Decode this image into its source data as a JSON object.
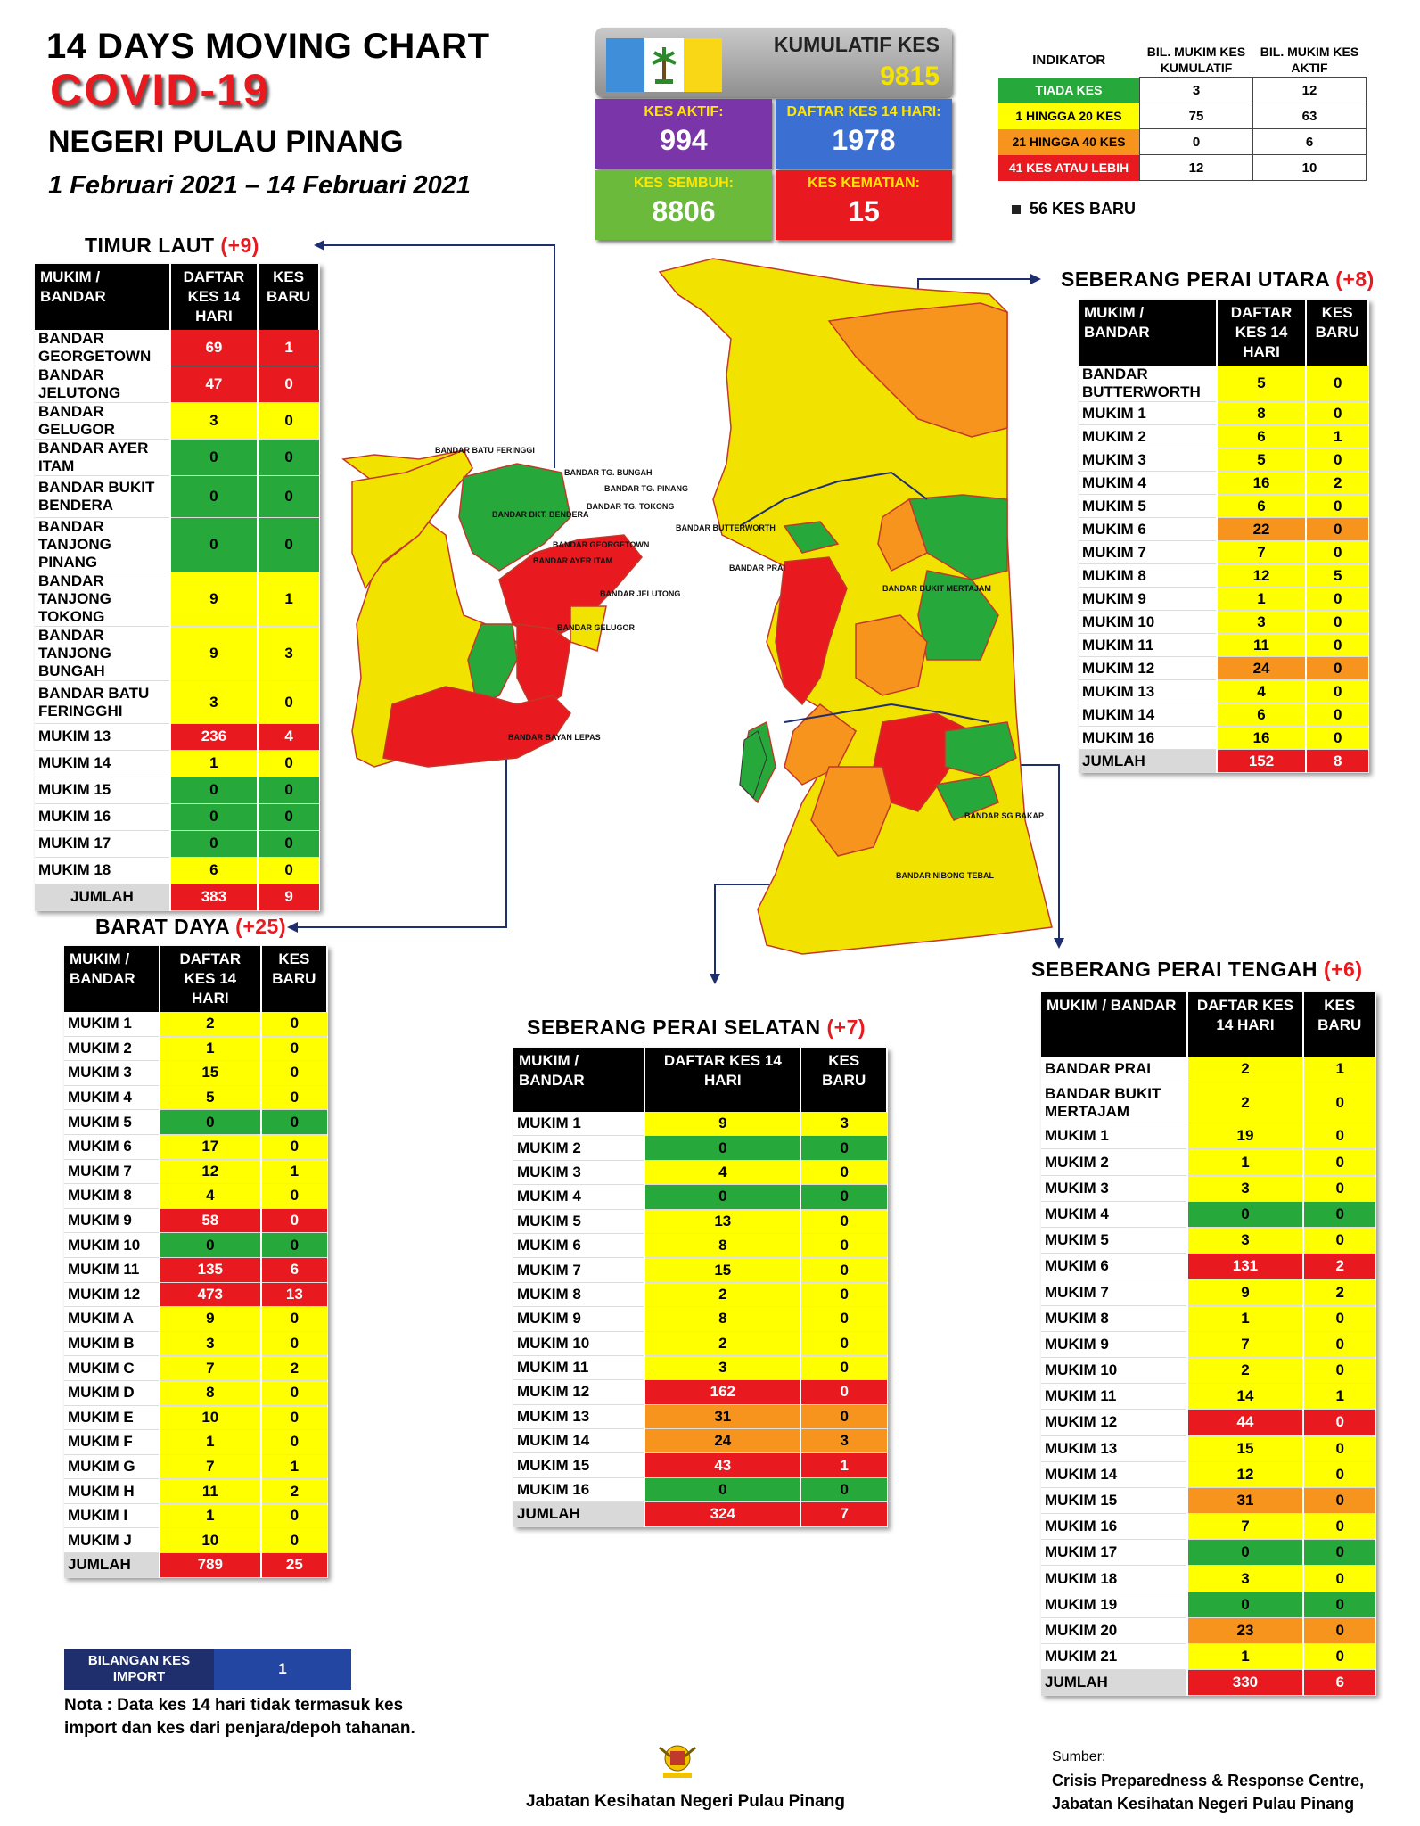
{
  "header": {
    "line1": "14  DAYS MOVING CHART",
    "line2": "COVID-19",
    "state": "NEGERI PULAU PINANG",
    "dates": "1 Februari 2021 – 14 Februari 2021"
  },
  "stats": {
    "cumulative_label": "KUMULATIF KES",
    "cumulative_value": "9815",
    "active_label": "KES AKTIF:",
    "active_value": "994",
    "list14_label": "DAFTAR KES 14 HARI:",
    "list14_value": "1978",
    "recovered_label": "KES SEMBUH:",
    "recovered_value": "8806",
    "deaths_label": "KES KEMATIAN:",
    "deaths_value": "15"
  },
  "indicator": {
    "head_indicator": "INDIKATOR",
    "head_cumulative": "BIL. MUKIM KES KUMULATIF",
    "head_active": "BIL. MUKIM KES AKTIF",
    "rows": [
      {
        "label": "TIADA KES",
        "color": "#27a83a",
        "cumulative": "3",
        "active": "12"
      },
      {
        "label": "1 HINGGA 20 KES",
        "color": "#ffff00",
        "cumulative": "75",
        "active": "63"
      },
      {
        "label": "21 HINGGA 40 KES",
        "color": "#f7941d",
        "cumulative": "0",
        "active": "6"
      },
      {
        "label": "41 KES ATAU LEBIH",
        "color": "#e8191f",
        "cumulative": "12",
        "active": "10"
      }
    ],
    "new_cases": "56 KES BARU"
  },
  "colors": {
    "green": "#27a83a",
    "yellow": "#ffff00",
    "orange": "#f7941d",
    "red": "#e8191f"
  },
  "districts": {
    "timur_laut": {
      "name": "TIMUR LAUT",
      "increase": "(+9)",
      "head": [
        "MUKIM / BANDAR",
        "DAFTAR KES 14 HARI",
        "KES BARU"
      ],
      "rows": [
        [
          "BANDAR GEORGETOWN",
          "69",
          "1",
          "r",
          "r"
        ],
        [
          "BANDAR JELUTONG",
          "47",
          "0",
          "r",
          "r"
        ],
        [
          "BANDAR GELUGOR",
          "3",
          "0",
          "y",
          "y"
        ],
        [
          "BANDAR AYER ITAM",
          "0",
          "0",
          "g",
          "g"
        ],
        [
          "BANDAR BUKIT BENDERA",
          "0",
          "0",
          "g",
          "g"
        ],
        [
          "BANDAR TANJONG PINANG",
          "0",
          "0",
          "g",
          "g"
        ],
        [
          "BANDAR TANJONG TOKONG",
          "9",
          "1",
          "y",
          "y"
        ],
        [
          "BANDAR TANJONG BUNGAH",
          "9",
          "3",
          "y",
          "y"
        ],
        [
          "BANDAR BATU FERINGGHI",
          "3",
          "0",
          "y",
          "y"
        ],
        [
          "MUKIM 13",
          "236",
          "4",
          "r",
          "r"
        ],
        [
          "MUKIM 14",
          "1",
          "0",
          "y",
          "y"
        ],
        [
          "MUKIM 15",
          "0",
          "0",
          "g",
          "g"
        ],
        [
          "MUKIM 16",
          "0",
          "0",
          "g",
          "g"
        ],
        [
          "MUKIM 17",
          "0",
          "0",
          "g",
          "g"
        ],
        [
          "MUKIM 18",
          "6",
          "0",
          "y",
          "y"
        ]
      ],
      "total": [
        "JUMLAH",
        "383",
        "9"
      ]
    },
    "barat_daya": {
      "name": "BARAT DAYA",
      "increase": "(+25)",
      "head": [
        "MUKIM / BANDAR",
        "DAFTAR KES 14 HARI",
        "KES BARU"
      ],
      "rows": [
        [
          "MUKIM 1",
          "2",
          "0",
          "y",
          "y"
        ],
        [
          "MUKIM 2",
          "1",
          "0",
          "y",
          "y"
        ],
        [
          "MUKIM 3",
          "15",
          "0",
          "y",
          "y"
        ],
        [
          "MUKIM 4",
          "5",
          "0",
          "y",
          "y"
        ],
        [
          "MUKIM 5",
          "0",
          "0",
          "g",
          "g"
        ],
        [
          "MUKIM 6",
          "17",
          "0",
          "y",
          "y"
        ],
        [
          "MUKIM 7",
          "12",
          "1",
          "y",
          "y"
        ],
        [
          "MUKIM 8",
          "4",
          "0",
          "y",
          "y"
        ],
        [
          "MUKIM 9",
          "58",
          "0",
          "r",
          "r"
        ],
        [
          "MUKIM 10",
          "0",
          "0",
          "g",
          "g"
        ],
        [
          "MUKIM 11",
          "135",
          "6",
          "r",
          "r"
        ],
        [
          "MUKIM 12",
          "473",
          "13",
          "r",
          "r"
        ],
        [
          "MUKIM A",
          "9",
          "0",
          "y",
          "y"
        ],
        [
          "MUKIM B",
          "3",
          "0",
          "y",
          "y"
        ],
        [
          "MUKIM C",
          "7",
          "2",
          "y",
          "y"
        ],
        [
          "MUKIM D",
          "8",
          "0",
          "y",
          "y"
        ],
        [
          "MUKIM E",
          "10",
          "0",
          "y",
          "y"
        ],
        [
          "MUKIM F",
          "1",
          "0",
          "y",
          "y"
        ],
        [
          "MUKIM G",
          "7",
          "1",
          "y",
          "y"
        ],
        [
          "MUKIM H",
          "11",
          "2",
          "y",
          "y"
        ],
        [
          "MUKIM I",
          "1",
          "0",
          "y",
          "y"
        ],
        [
          "MUKIM J",
          "10",
          "0",
          "y",
          "y"
        ]
      ],
      "total": [
        "JUMLAH",
        "789",
        "25"
      ]
    },
    "spu": {
      "name": "SEBERANG PERAI UTARA",
      "increase": "(+8)",
      "head": [
        "MUKIM / BANDAR",
        "DAFTAR KES 14 HARI",
        "KES BARU"
      ],
      "rows": [
        [
          "BANDAR BUTTERWORTH",
          "5",
          "0",
          "y",
          "y"
        ],
        [
          "MUKIM 1",
          "8",
          "0",
          "y",
          "y"
        ],
        [
          "MUKIM 2",
          "6",
          "1",
          "y",
          "y"
        ],
        [
          "MUKIM 3",
          "5",
          "0",
          "y",
          "y"
        ],
        [
          "MUKIM 4",
          "16",
          "2",
          "y",
          "y"
        ],
        [
          "MUKIM 5",
          "6",
          "0",
          "y",
          "y"
        ],
        [
          "MUKIM 6",
          "22",
          "0",
          "o",
          "o"
        ],
        [
          "MUKIM 7",
          "7",
          "0",
          "y",
          "y"
        ],
        [
          "MUKIM 8",
          "12",
          "5",
          "y",
          "y"
        ],
        [
          "MUKIM 9",
          "1",
          "0",
          "y",
          "y"
        ],
        [
          "MUKIM 10",
          "3",
          "0",
          "y",
          "y"
        ],
        [
          "MUKIM 11",
          "11",
          "0",
          "y",
          "y"
        ],
        [
          "MUKIM 12",
          "24",
          "0",
          "o",
          "o"
        ],
        [
          "MUKIM 13",
          "4",
          "0",
          "y",
          "y"
        ],
        [
          "MUKIM 14",
          "6",
          "0",
          "y",
          "y"
        ],
        [
          "MUKIM 16",
          "16",
          "0",
          "y",
          "y"
        ]
      ],
      "total": [
        "JUMLAH",
        "152",
        "8"
      ]
    },
    "sps": {
      "name": "SEBERANG PERAI SELATAN",
      "increase": "(+7)",
      "head": [
        "MUKIM / BANDAR",
        "DAFTAR KES 14 HARI",
        "KES BARU"
      ],
      "rows": [
        [
          "MUKIM 1",
          "9",
          "3",
          "y",
          "y"
        ],
        [
          "MUKIM 2",
          "0",
          "0",
          "g",
          "g"
        ],
        [
          "MUKIM 3",
          "4",
          "0",
          "y",
          "y"
        ],
        [
          "MUKIM 4",
          "0",
          "0",
          "g",
          "g"
        ],
        [
          "MUKIM 5",
          "13",
          "0",
          "y",
          "y"
        ],
        [
          "MUKIM 6",
          "8",
          "0",
          "y",
          "y"
        ],
        [
          "MUKIM 7",
          "15",
          "0",
          "y",
          "y"
        ],
        [
          "MUKIM 8",
          "2",
          "0",
          "y",
          "y"
        ],
        [
          "MUKIM 9",
          "8",
          "0",
          "y",
          "y"
        ],
        [
          "MUKIM 10",
          "2",
          "0",
          "y",
          "y"
        ],
        [
          "MUKIM 11",
          "3",
          "0",
          "y",
          "y"
        ],
        [
          "MUKIM 12",
          "162",
          "0",
          "r",
          "r"
        ],
        [
          "MUKIM 13",
          "31",
          "0",
          "o",
          "o"
        ],
        [
          "MUKIM 14",
          "24",
          "3",
          "o",
          "o"
        ],
        [
          "MUKIM 15",
          "43",
          "1",
          "r",
          "r"
        ],
        [
          "MUKIM 16",
          "0",
          "0",
          "g",
          "g"
        ]
      ],
      "total": [
        "JUMLAH",
        "324",
        "7"
      ]
    },
    "spt": {
      "name": "SEBERANG PERAI TENGAH",
      "increase": "(+6)",
      "head": [
        "MUKIM / BANDAR",
        "DAFTAR KES 14 HARI",
        "KES BARU"
      ],
      "rows": [
        [
          "BANDAR PRAI",
          "2",
          "1",
          "y",
          "y"
        ],
        [
          "BANDAR BUKIT MERTAJAM",
          "2",
          "0",
          "y",
          "y"
        ],
        [
          "MUKIM 1",
          "19",
          "0",
          "y",
          "y"
        ],
        [
          "MUKIM 2",
          "1",
          "0",
          "y",
          "y"
        ],
        [
          "MUKIM 3",
          "3",
          "0",
          "y",
          "y"
        ],
        [
          "MUKIM 4",
          "0",
          "0",
          "g",
          "g"
        ],
        [
          "MUKIM 5",
          "3",
          "0",
          "y",
          "y"
        ],
        [
          "MUKIM 6",
          "131",
          "2",
          "r",
          "r"
        ],
        [
          "MUKIM 7",
          "9",
          "2",
          "y",
          "y"
        ],
        [
          "MUKIM 8",
          "1",
          "0",
          "y",
          "y"
        ],
        [
          "MUKIM 9",
          "7",
          "0",
          "y",
          "y"
        ],
        [
          "MUKIM 10",
          "2",
          "0",
          "y",
          "y"
        ],
        [
          "MUKIM 11",
          "14",
          "1",
          "y",
          "y"
        ],
        [
          "MUKIM 12",
          "44",
          "0",
          "r",
          "r"
        ],
        [
          "MUKIM 13",
          "15",
          "0",
          "y",
          "y"
        ],
        [
          "MUKIM 14",
          "12",
          "0",
          "y",
          "y"
        ],
        [
          "MUKIM 15",
          "31",
          "0",
          "o",
          "o"
        ],
        [
          "MUKIM 16",
          "7",
          "0",
          "y",
          "y"
        ],
        [
          "MUKIM 17",
          "0",
          "0",
          "g",
          "g"
        ],
        [
          "MUKIM 18",
          "3",
          "0",
          "y",
          "y"
        ],
        [
          "MUKIM 19",
          "0",
          "0",
          "g",
          "g"
        ],
        [
          "MUKIM 20",
          "23",
          "0",
          "o",
          "o"
        ],
        [
          "MUKIM 21",
          "1",
          "0",
          "y",
          "y"
        ]
      ],
      "total": [
        "JUMLAH",
        "330",
        "6"
      ]
    }
  },
  "map_labels": {
    "island": [
      "BANDAR BATU FERINGGI",
      "BANDAR TG. BUNGAH",
      "BANDAR TG. PINANG",
      "BANDAR TG. TOKONG",
      "BANDAR GEORGETOWN",
      "BANDAR AYER ITAM",
      "BANDAR JELUTONG",
      "BANDAR BKT. BENDERA",
      "BANDAR GELUGOR",
      "BANDAR BAYAN LEPAS"
    ],
    "mainland": [
      "BANDAR BUTTERWORTH",
      "BANDAR PRAI",
      "BANDAR BUKIT MERTAJAM",
      "BANDAR SG BAKAP",
      "BANDAR NIBONG TEBAL"
    ]
  },
  "import": {
    "label": "BILANGAN KES IMPORT",
    "value": "1"
  },
  "note": "Nota : Data kes 14 hari tidak termasuk kes import dan kes dari penjara/depoh tahanan.",
  "footer": "Jabatan Kesihatan Negeri Pulau Pinang",
  "source": {
    "label": "Sumber:",
    "line1": "Crisis Preparedness & Response Centre,",
    "line2": "Jabatan Kesihatan Negeri Pulau Pinang"
  }
}
